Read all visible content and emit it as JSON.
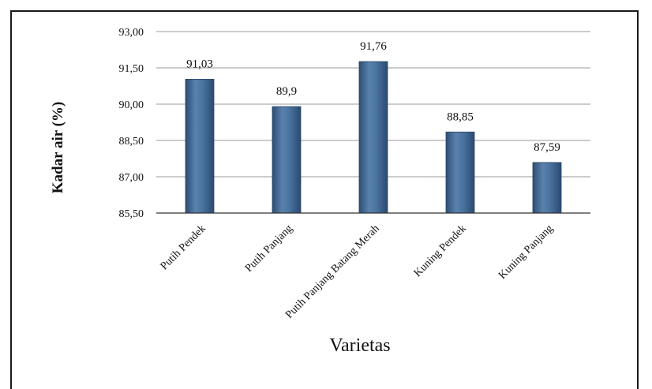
{
  "chart_data": {
    "type": "bar",
    "title": "",
    "xlabel": "Varietas",
    "ylabel": "Kadar air (%)",
    "categories": [
      "Putih Pendek",
      "Putih Panjang",
      "Putih Panjang Batang Merah",
      "Kuning Pendek",
      "Kuning Panjang"
    ],
    "values": [
      91.03,
      89.9,
      91.76,
      88.85,
      87.59
    ],
    "data_labels": [
      "91,03",
      "89,9",
      "91,76",
      "88,85",
      "87,59"
    ],
    "ylim": [
      85.5,
      93.0
    ],
    "yticks": [
      85.5,
      87.0,
      88.5,
      90.0,
      91.5,
      93.0
    ],
    "ytick_labels": [
      "85,50",
      "87,00",
      "88,50",
      "90,00",
      "91,50",
      "93,00"
    ],
    "grid": true,
    "legend": "none",
    "bar_color": "#3f6694"
  }
}
